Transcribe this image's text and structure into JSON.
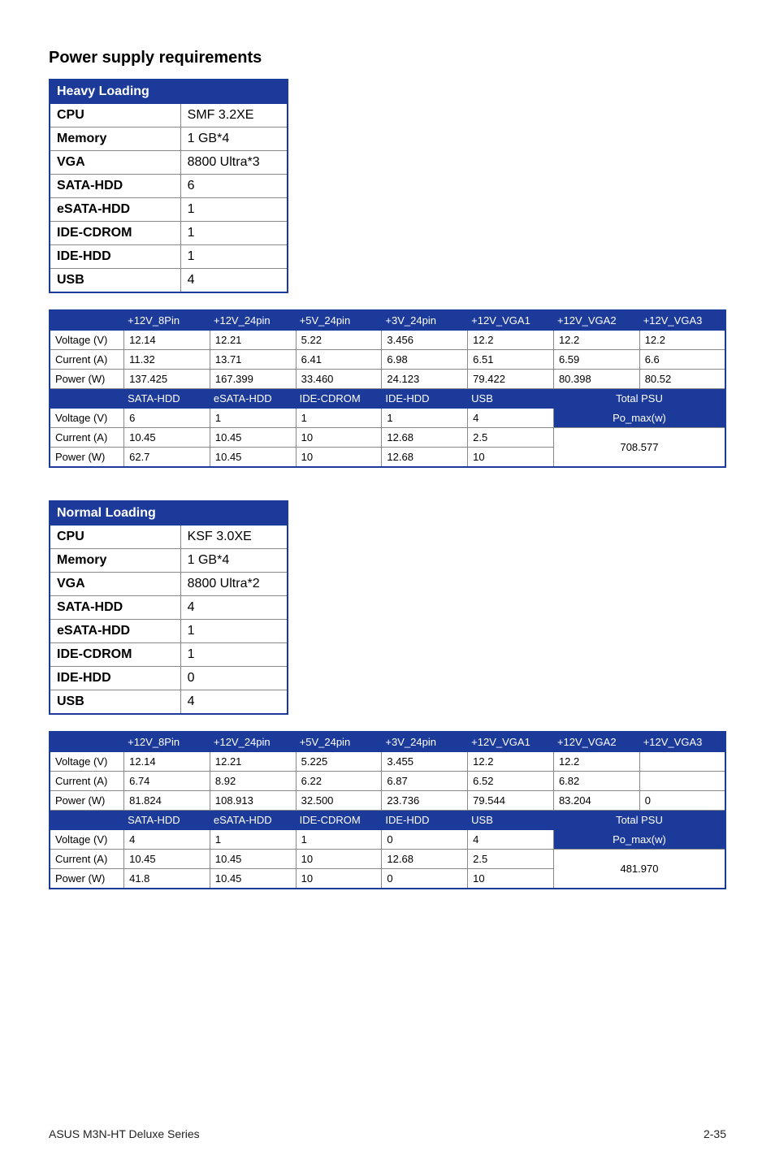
{
  "title": "Power supply requirements",
  "footer": {
    "left": "ASUS M3N-HT Deluxe Series",
    "right": "2-35"
  },
  "heavy": {
    "loading_label": "Heavy Loading",
    "rows": [
      {
        "k": "CPU",
        "v": "SMF 3.2XE"
      },
      {
        "k": "Memory",
        "v": "1 GB*4"
      },
      {
        "k": "VGA",
        "v": "8800 Ultra*3"
      },
      {
        "k": "SATA-HDD",
        "v": "6"
      },
      {
        "k": "eSATA-HDD",
        "v": "1"
      },
      {
        "k": "IDE-CDROM",
        "v": "1"
      },
      {
        "k": "IDE-HDD",
        "v": "1"
      },
      {
        "k": "USB",
        "v": "4"
      }
    ],
    "headers1": [
      "",
      "+12V_8Pin",
      "+12V_24pin",
      "+5V_24pin",
      "+3V_24pin",
      "+12V_VGA1",
      "+12V_VGA2",
      "+12V_VGA3"
    ],
    "block1": [
      [
        "Voltage (V)",
        "12.14",
        "12.21",
        "5.22",
        "3.456",
        "12.2",
        "12.2",
        "12.2"
      ],
      [
        "Current (A)",
        "11.32",
        "13.71",
        "6.41",
        "6.98",
        "6.51",
        "6.59",
        "6.6"
      ],
      [
        "Power (W)",
        "137.425",
        "167.399",
        "33.460",
        "24.123",
        "79.422",
        "80.398",
        "80.52"
      ]
    ],
    "headers2": [
      "",
      "SATA-HDD",
      "eSATA-HDD",
      "IDE-CDROM",
      "IDE-HDD",
      "USB",
      "Total PSU"
    ],
    "block2": [
      [
        "Voltage (V)",
        "6",
        "1",
        "1",
        "1",
        "4"
      ],
      [
        "Current (A)",
        "10.45",
        "10.45",
        "10",
        "12.68",
        "2.5"
      ],
      [
        "Power (W)",
        "62.7",
        "10.45",
        "10",
        "12.68",
        "10"
      ]
    ],
    "po_max_label": "Po_max(w)",
    "po_max_value": "708.577"
  },
  "normal": {
    "loading_label": "Normal Loading",
    "rows": [
      {
        "k": "CPU",
        "v": "KSF 3.0XE"
      },
      {
        "k": "Memory",
        "v": "1 GB*4"
      },
      {
        "k": "VGA",
        "v": "8800 Ultra*2"
      },
      {
        "k": "SATA-HDD",
        "v": "4"
      },
      {
        "k": "eSATA-HDD",
        "v": "1"
      },
      {
        "k": "IDE-CDROM",
        "v": "1"
      },
      {
        "k": "IDE-HDD",
        "v": "0"
      },
      {
        "k": "USB",
        "v": "4"
      }
    ],
    "headers1": [
      "",
      "+12V_8Pin",
      "+12V_24pin",
      "+5V_24pin",
      "+3V_24pin",
      "+12V_VGA1",
      "+12V_VGA2",
      "+12V_VGA3"
    ],
    "block1": [
      [
        "Voltage (V)",
        "12.14",
        "12.21",
        "5.225",
        "3.455",
        "12.2",
        "12.2",
        ""
      ],
      [
        "Current (A)",
        "6.74",
        "8.92",
        "6.22",
        "6.87",
        "6.52",
        "6.82",
        ""
      ],
      [
        "Power (W)",
        "81.824",
        "108.913",
        "32.500",
        "23.736",
        "79.544",
        "83.204",
        "0"
      ]
    ],
    "headers2": [
      "",
      "SATA-HDD",
      "eSATA-HDD",
      "IDE-CDROM",
      "IDE-HDD",
      "USB",
      "Total PSU"
    ],
    "block2": [
      [
        "Voltage (V)",
        "4",
        "1",
        "1",
        "0",
        "4"
      ],
      [
        "Current (A)",
        "10.45",
        "10.45",
        "10",
        "12.68",
        "2.5"
      ],
      [
        "Power (W)",
        "41.8",
        "10.45",
        "10",
        "0",
        "10"
      ]
    ],
    "po_max_label": "Po_max(w)",
    "po_max_value": "481.970"
  },
  "colors": {
    "header_bg": "#1c3a9a",
    "header_fg": "#ffffff",
    "border": "#888888"
  }
}
